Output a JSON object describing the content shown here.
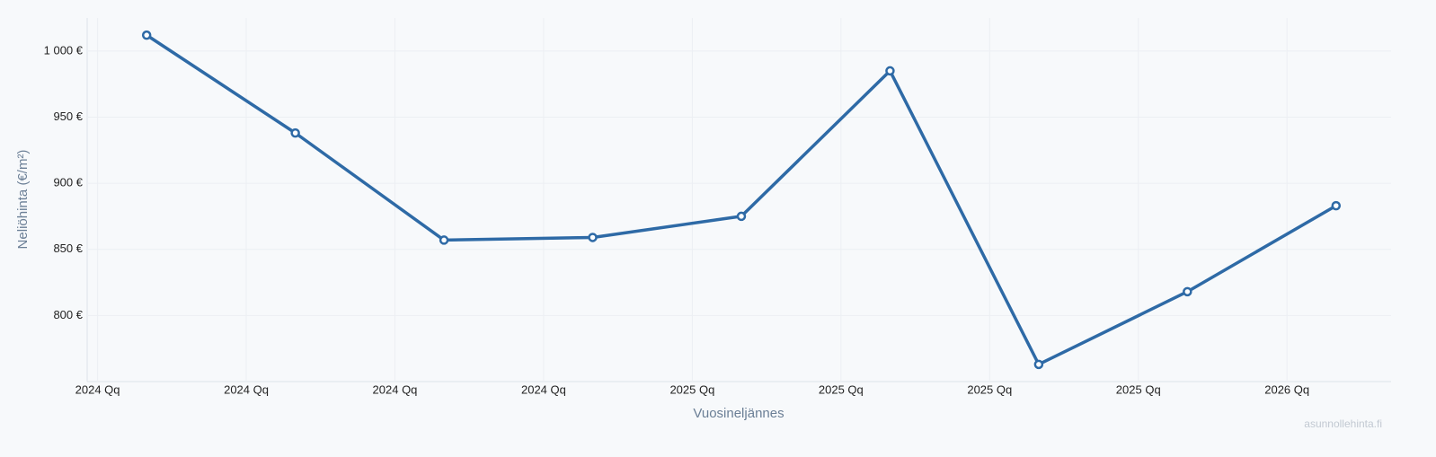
{
  "chart_data": {
    "type": "line",
    "x": [
      0.33,
      1.33,
      2.33,
      3.33,
      4.33,
      5.33,
      6.33,
      7.33,
      8.33
    ],
    "values": [
      1012,
      938,
      857,
      859,
      875,
      985,
      763,
      818,
      883
    ],
    "color": "#2e6aa6",
    "xlim": [
      -0.07,
      8.7
    ],
    "xticks": [
      {
        "value": 0,
        "label": "2024 Qq"
      },
      {
        "value": 1,
        "label": "2024 Qq"
      },
      {
        "value": 2,
        "label": "2024 Qq"
      },
      {
        "value": 3,
        "label": "2024 Qq"
      },
      {
        "value": 4,
        "label": "2025 Qq"
      },
      {
        "value": 5,
        "label": "2025 Qq"
      },
      {
        "value": 6,
        "label": "2025 Qq"
      },
      {
        "value": 7,
        "label": "2025 Qq"
      },
      {
        "value": 8,
        "label": "2026 Qq"
      }
    ],
    "ylim": [
      750,
      1025
    ],
    "yticks": [
      {
        "value": 800,
        "label": "800 €"
      },
      {
        "value": 850,
        "label": "850 €"
      },
      {
        "value": 900,
        "label": "900 €"
      },
      {
        "value": 950,
        "label": "950 €"
      },
      {
        "value": 1000,
        "label": "1 000 €"
      }
    ],
    "x_label": "Vuosineljännes",
    "y_label": "Neliöhinta (€/m²)",
    "watermark": "asunnollehinta.fi",
    "grid": true
  }
}
